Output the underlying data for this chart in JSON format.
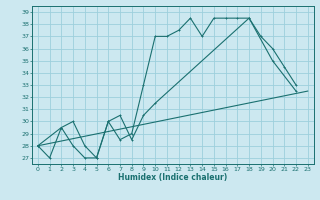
{
  "title": "",
  "xlabel": "Humidex (Indice chaleur)",
  "bg_color": "#cce8f0",
  "line_color": "#1a7070",
  "grid_color": "#9dcfdc",
  "xlim": [
    -0.5,
    23.5
  ],
  "ylim": [
    26.5,
    39.5
  ],
  "yticks": [
    27,
    28,
    29,
    30,
    31,
    32,
    33,
    34,
    35,
    36,
    37,
    38,
    39
  ],
  "xticks": [
    0,
    1,
    2,
    3,
    4,
    5,
    6,
    7,
    8,
    9,
    10,
    11,
    12,
    13,
    14,
    15,
    16,
    17,
    18,
    19,
    20,
    21,
    22,
    23
  ],
  "line1_x": [
    0,
    1,
    2,
    3,
    4,
    5,
    6,
    7,
    8,
    9,
    10,
    11,
    12,
    13,
    14,
    15,
    16,
    17,
    18,
    19,
    20,
    21,
    22
  ],
  "line1_y": [
    28,
    27,
    29.5,
    28,
    27,
    27,
    30,
    28.5,
    29,
    33,
    37,
    37,
    37.5,
    38.5,
    37,
    38.5,
    38.5,
    38.5,
    38.5,
    37,
    36,
    34.5,
    33
  ],
  "line2_x": [
    0,
    2,
    3,
    4,
    5,
    6,
    7,
    8,
    9,
    10,
    18,
    20,
    22
  ],
  "line2_y": [
    28,
    29.5,
    30,
    28,
    27,
    30,
    30.5,
    28.5,
    30.5,
    31.5,
    38.5,
    35,
    32.5
  ],
  "line3_x": [
    0,
    23
  ],
  "line3_y": [
    28,
    32.5
  ]
}
